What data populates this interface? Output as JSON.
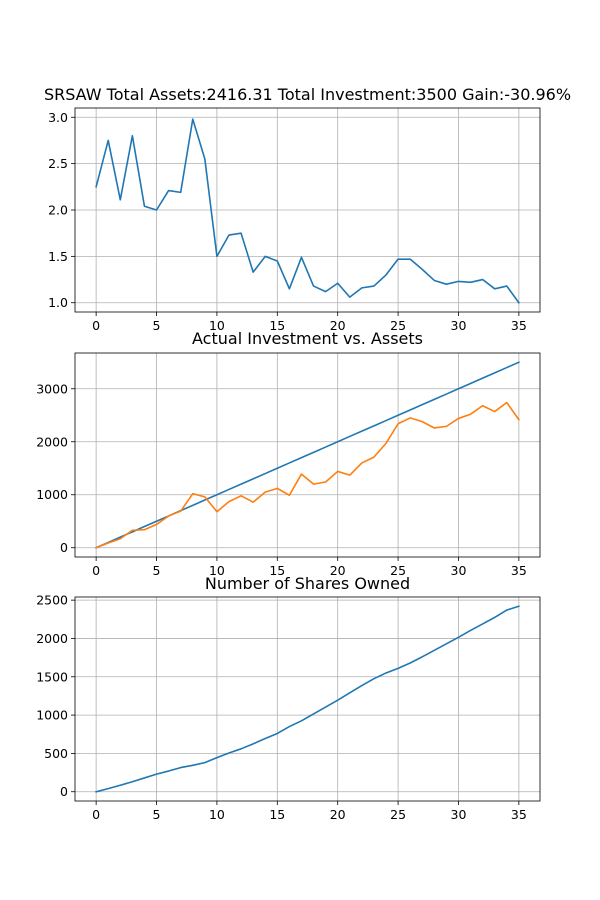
{
  "chart_data": [
    {
      "type": "line",
      "title": "SRSAW Total Assets:2416.31  Total Investment:3500  Gain:-30.96%",
      "xlabel": "",
      "ylabel": "",
      "xlim": [
        -1.75,
        36.75
      ],
      "ylim": [
        0.9,
        3.1
      ],
      "xticks": [
        0,
        5,
        10,
        15,
        20,
        25,
        30,
        35
      ],
      "yticks": [
        1.0,
        1.5,
        2.0,
        2.5,
        3.0
      ],
      "ytick_labels": [
        "1.0",
        "1.5",
        "2.0",
        "2.5",
        "3.0"
      ],
      "grid": true,
      "x": [
        0,
        1,
        2,
        3,
        4,
        5,
        6,
        7,
        8,
        9,
        10,
        11,
        12,
        13,
        14,
        15,
        16,
        17,
        18,
        19,
        20,
        21,
        22,
        23,
        24,
        25,
        26,
        27,
        28,
        29,
        30,
        31,
        32,
        33,
        34,
        35
      ],
      "series": [
        {
          "color": "#1f77b4",
          "values": [
            2.25,
            2.75,
            2.11,
            2.8,
            2.04,
            2.0,
            2.21,
            2.19,
            2.98,
            2.55,
            1.5,
            1.73,
            1.75,
            1.33,
            1.5,
            1.45,
            1.15,
            1.49,
            1.18,
            1.12,
            1.21,
            1.06,
            1.16,
            1.18,
            1.3,
            1.47,
            1.47,
            1.36,
            1.24,
            1.2,
            1.23,
            1.22,
            1.25,
            1.15,
            1.18,
            1.0
          ]
        }
      ]
    },
    {
      "type": "line",
      "title": "Actual Investment vs. Assets",
      "xlabel": "",
      "ylabel": "",
      "xlim": [
        -1.75,
        36.75
      ],
      "ylim": [
        -175,
        3675
      ],
      "xticks": [
        0,
        5,
        10,
        15,
        20,
        25,
        30,
        35
      ],
      "yticks": [
        0,
        1000,
        2000,
        3000
      ],
      "ytick_labels": [
        "0",
        "1000",
        "2000",
        "3000"
      ],
      "grid": true,
      "x": [
        0,
        1,
        2,
        3,
        4,
        5,
        6,
        7,
        8,
        9,
        10,
        11,
        12,
        13,
        14,
        15,
        16,
        17,
        18,
        19,
        20,
        21,
        22,
        23,
        24,
        25,
        26,
        27,
        28,
        29,
        30,
        31,
        32,
        33,
        34,
        35
      ],
      "series": [
        {
          "color": "#1f77b4",
          "values": [
            0,
            100,
            200,
            300,
            400,
            500,
            600,
            700,
            800,
            900,
            1000,
            1100,
            1200,
            1300,
            1400,
            1500,
            1600,
            1700,
            1800,
            1900,
            2000,
            2100,
            2200,
            2300,
            2400,
            2500,
            2600,
            2700,
            2800,
            2900,
            3000,
            3100,
            3200,
            3300,
            3400,
            3500
          ]
        },
        {
          "color": "#ff7f0e",
          "values": [
            0,
            90,
            170,
            330,
            340,
            440,
            600,
            690,
            1020,
            960,
            680,
            870,
            980,
            860,
            1050,
            1120,
            990,
            1390,
            1200,
            1240,
            1440,
            1370,
            1600,
            1710,
            1970,
            2340,
            2450,
            2380,
            2260,
            2290,
            2440,
            2520,
            2680,
            2570,
            2740,
            2416
          ]
        }
      ]
    },
    {
      "type": "line",
      "title": "Number of Shares Owned",
      "xlabel": "",
      "ylabel": "",
      "xlim": [
        -1.75,
        36.75
      ],
      "ylim": [
        -121,
        2541
      ],
      "xticks": [
        0,
        5,
        10,
        15,
        20,
        25,
        30,
        35
      ],
      "yticks": [
        0,
        500,
        1000,
        1500,
        2000,
        2500
      ],
      "ytick_labels": [
        "0",
        "500",
        "1000",
        "1500",
        "2000",
        "2500"
      ],
      "grid": true,
      "x": [
        0,
        1,
        2,
        3,
        4,
        5,
        6,
        7,
        8,
        9,
        10,
        11,
        12,
        13,
        14,
        15,
        16,
        17,
        18,
        19,
        20,
        21,
        22,
        23,
        24,
        25,
        26,
        27,
        28,
        29,
        30,
        31,
        32,
        33,
        34,
        35
      ],
      "series": [
        {
          "color": "#1f77b4",
          "values": [
            0,
            40,
            85,
            130,
            180,
            230,
            270,
            315,
            345,
            380,
            445,
            505,
            560,
            625,
            695,
            760,
            850,
            925,
            1015,
            1105,
            1195,
            1290,
            1385,
            1475,
            1550,
            1610,
            1680,
            1760,
            1845,
            1930,
            2015,
            2105,
            2190,
            2275,
            2370,
            2420
          ]
        }
      ]
    }
  ]
}
